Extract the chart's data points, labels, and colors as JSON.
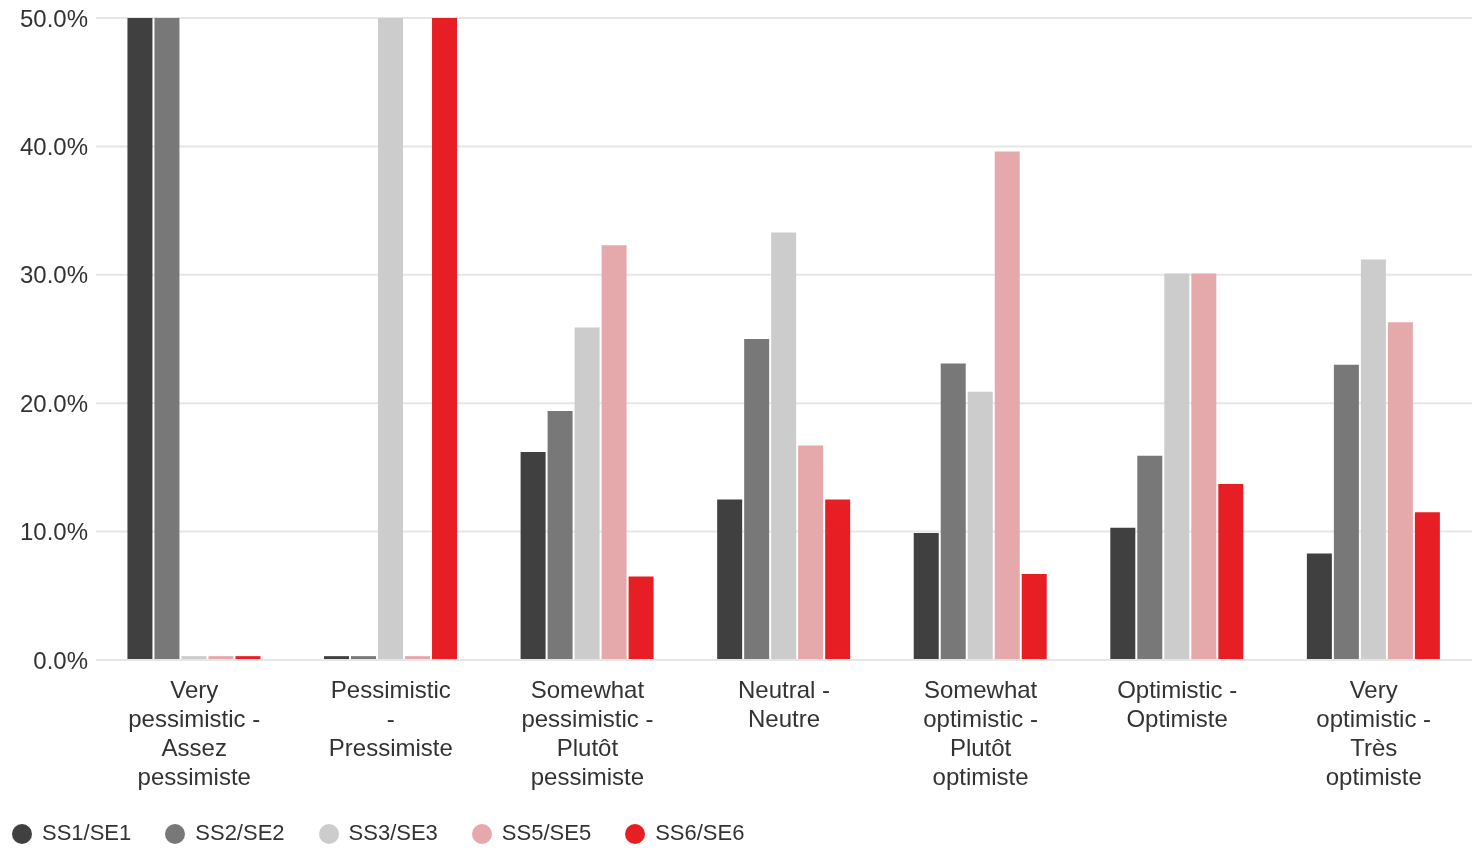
{
  "chart_data": {
    "type": "bar",
    "categories": [
      "Very pessimistic - Assez pessimiste",
      "Pessimistic - Pressimiste",
      "Somewhat pessimistic - Plutôt pessimiste",
      "Neutral - Neutre",
      "Somewhat optimistic - Plutôt optimiste",
      "Optimistic - Optimiste",
      "Very optimistic - Très optimiste"
    ],
    "series": [
      {
        "name": "SS1/SE1",
        "color": "#404040",
        "values": [
          50,
          0.3,
          16.2,
          12.5,
          9.9,
          10.3,
          8.3
        ]
      },
      {
        "name": "SS2/SE2",
        "color": "#787878",
        "values": [
          50,
          0.3,
          19.4,
          25.0,
          23.1,
          15.9,
          23.0
        ]
      },
      {
        "name": "SS3/SE3",
        "color": "#cccccc",
        "values": [
          0.3,
          50,
          25.9,
          33.3,
          20.9,
          30.1,
          31.2
        ]
      },
      {
        "name": "SS5/SE5",
        "color": "#e6a9ab",
        "values": [
          0.3,
          0.3,
          32.3,
          16.7,
          39.6,
          30.1,
          26.3
        ]
      },
      {
        "name": "SS6/SE6",
        "color": "#e81e25",
        "values": [
          0.3,
          50,
          6.5,
          12.5,
          6.7,
          13.7,
          11.5
        ]
      }
    ],
    "ylim": [
      0,
      50
    ],
    "yticks": [
      {
        "value": 0,
        "label": "0.0%"
      },
      {
        "value": 10,
        "label": "10.0%"
      },
      {
        "value": 20,
        "label": "20.0%"
      },
      {
        "value": 30,
        "label": "30.0%"
      },
      {
        "value": 40,
        "label": "40.0%"
      },
      {
        "value": 50,
        "label": "50.0%"
      }
    ],
    "grid": "y",
    "legend": "bottom left"
  }
}
